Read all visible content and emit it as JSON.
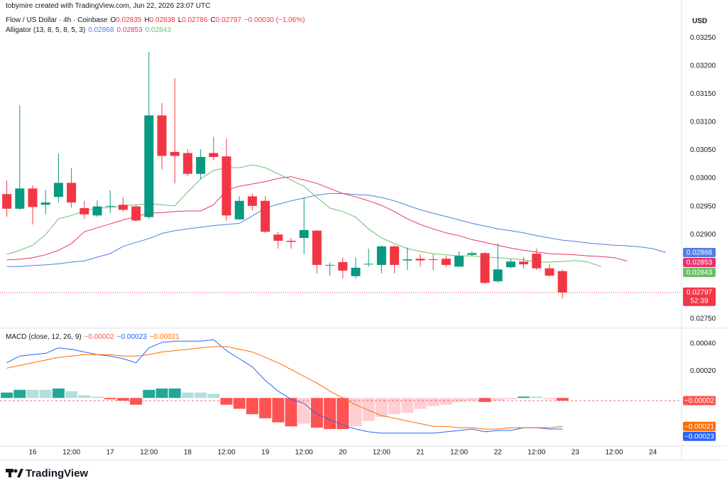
{
  "attribution": "tobymire created with TradingView.com, Jun 22, 2026 23:07 UTC",
  "brand": "TradingView",
  "chart_data": [
    {
      "type": "candlestick",
      "title": "Flow / US Dollar · 4h · Coinbase",
      "ohlc_labels": {
        "open": "O",
        "high": "H",
        "low": "L",
        "close": "C"
      },
      "change": "−0.00030 (−1.06%)",
      "countdown": "52:39",
      "axis_unit": "USD",
      "up_color": "#089981",
      "down_color": "#f23645",
      "grid": false,
      "categories": [
        null,
        null,
        "16",
        null,
        null,
        "12:00",
        null,
        null,
        "17",
        null,
        null,
        "12:00",
        null,
        null,
        "18",
        null,
        null,
        "12:00",
        null,
        null,
        "19",
        null,
        null,
        "12:00",
        null,
        null,
        "20",
        null,
        null,
        "12:00",
        null,
        null,
        "21",
        null,
        null,
        "12:00",
        null,
        null,
        "22",
        null,
        null,
        "12:00",
        null,
        null,
        "23",
        null,
        null,
        "12:00",
        null,
        null,
        "24",
        null
      ],
      "open": [
        0.02972,
        0.02946,
        0.02982,
        0.02953,
        0.02967,
        0.02992,
        0.02947,
        0.02934,
        0.0295,
        0.02953,
        0.0295,
        0.02931,
        0.03112,
        0.03047,
        0.03045,
        0.03008,
        0.03045,
        0.03039,
        0.02927,
        0.02968,
        0.0296,
        0.029,
        0.02889,
        0.02894,
        0.02907,
        0.02845,
        0.02851,
        0.02826,
        0.02847,
        0.02846,
        0.02879,
        0.02854,
        0.02857,
        0.02856,
        0.02857,
        0.02843,
        0.02864,
        0.02867,
        0.02817,
        0.02842,
        0.02852,
        0.02866,
        0.0284,
        0.02835,
        null,
        null,
        null,
        null,
        null,
        null,
        null,
        null
      ],
      "high": [
        0.02996,
        0.0313,
        0.02988,
        0.02979,
        0.03044,
        0.03018,
        0.0296,
        0.02961,
        0.02979,
        0.02966,
        0.02953,
        0.03225,
        0.03134,
        0.03178,
        0.03052,
        0.03052,
        0.03074,
        0.03071,
        0.02968,
        0.02973,
        0.02968,
        0.02905,
        0.02894,
        0.02966,
        0.02908,
        0.0285,
        0.02859,
        0.02859,
        0.02875,
        0.02881,
        0.02881,
        0.02877,
        0.02865,
        0.02865,
        0.02862,
        0.0287,
        0.0287,
        0.02869,
        0.02884,
        0.02857,
        0.0286,
        0.02875,
        0.02847,
        0.02838,
        null,
        null,
        null,
        null,
        null,
        null,
        null,
        null
      ],
      "low": [
        0.02932,
        0.02944,
        0.02918,
        0.02936,
        0.02957,
        0.02948,
        0.02928,
        0.02931,
        0.02938,
        0.02941,
        0.02923,
        0.02928,
        0.03016,
        0.02991,
        0.03004,
        0.02999,
        0.03032,
        0.02925,
        0.02926,
        0.02943,
        0.02903,
        0.02875,
        0.02875,
        0.02865,
        0.02831,
        0.02827,
        0.02822,
        0.02822,
        0.02843,
        0.02831,
        0.02831,
        0.02837,
        0.02843,
        0.02837,
        0.02842,
        0.02842,
        0.02862,
        0.02812,
        0.02814,
        0.0284,
        0.0284,
        0.02837,
        0.02825,
        0.02786,
        null,
        null,
        null,
        null,
        null,
        null,
        null,
        null
      ],
      "close": [
        0.02946,
        0.02982,
        0.02949,
        0.02957,
        0.02992,
        0.02957,
        0.02936,
        0.0295,
        0.02951,
        0.02944,
        0.02925,
        0.03112,
        0.0304,
        0.0304,
        0.03008,
        0.03038,
        0.03038,
        0.02934,
        0.0296,
        0.02951,
        0.02905,
        0.02889,
        0.02887,
        0.02908,
        0.02846,
        0.02846,
        0.02836,
        0.02841,
        0.02848,
        0.02879,
        0.02846,
        0.02856,
        0.02854,
        0.02855,
        0.02846,
        0.02862,
        0.02867,
        0.02814,
        0.02838,
        0.02852,
        0.02847,
        0.0284,
        0.02827,
        0.02797,
        null,
        null,
        null,
        null,
        null,
        null,
        null,
        null
      ],
      "overlay": {
        "name": "Alligator (13, 8, 5, 8, 5, 3)",
        "series": [
          {
            "color": "#4f7fe6",
            "values": [
              0.02843,
              0.02843,
              0.02845,
              0.02846,
              0.02848,
              0.02851,
              0.02853,
              0.0286,
              0.02866,
              0.02879,
              0.02886,
              0.02893,
              0.02902,
              0.02907,
              0.0291,
              0.02913,
              0.02916,
              0.02918,
              0.0292,
              0.02933,
              0.02947,
              0.02954,
              0.0296,
              0.02965,
              0.0297,
              0.02973,
              0.02973,
              0.02971,
              0.0297,
              0.02966,
              0.0296,
              0.02952,
              0.02944,
              0.02938,
              0.02932,
              0.02926,
              0.0292,
              0.02915,
              0.0291,
              0.02907,
              0.02903,
              0.02898,
              0.02894,
              0.0289,
              0.02888,
              0.02885,
              0.02883,
              0.02881,
              0.0288,
              0.02878,
              0.02875,
              0.02868
            ]
          },
          {
            "color": "#e8336d",
            "values": [
              0.02855,
              0.02856,
              0.02859,
              0.02864,
              0.02872,
              0.02884,
              0.02905,
              0.02912,
              0.02919,
              0.02926,
              0.02932,
              0.02938,
              0.02939,
              0.02941,
              0.02942,
              0.02942,
              0.02953,
              0.02979,
              0.02986,
              0.0299,
              0.02994,
              0.03,
              0.03003,
              0.02997,
              0.02991,
              0.02982,
              0.02973,
              0.02967,
              0.0296,
              0.02952,
              0.02941,
              0.02928,
              0.02918,
              0.0291,
              0.02903,
              0.02898,
              0.02891,
              0.02886,
              0.02881,
              0.02876,
              0.02872,
              0.02869,
              0.02866,
              0.02865,
              0.02864,
              0.02862,
              0.02861,
              0.02859,
              0.02853,
              null,
              null,
              null
            ]
          },
          {
            "color": "#6cbf6c",
            "values": [
              0.02865,
              0.02872,
              0.02881,
              0.029,
              0.02928,
              0.02934,
              0.02942,
              0.02947,
              0.02948,
              0.02951,
              0.02953,
              0.02955,
              0.02953,
              0.02951,
              0.02976,
              0.02999,
              0.03014,
              0.03019,
              0.03019,
              0.03024,
              0.03019,
              0.03008,
              0.02997,
              0.02986,
              0.02966,
              0.02947,
              0.02941,
              0.02931,
              0.0291,
              0.02894,
              0.02884,
              0.02875,
              0.0287,
              0.02866,
              0.02864,
              0.02862,
              0.02862,
              0.0286,
              0.02859,
              0.02857,
              0.02855,
              0.02851,
              0.02851,
              0.02852,
              0.02854,
              0.02851,
              0.02843,
              null,
              null,
              null,
              null,
              null
            ]
          }
        ]
      },
      "ylim": [
        0.02736,
        0.03292
      ],
      "yticks": [
        {
          "value": 0.0275,
          "label": "0.02750"
        },
        {
          "value": 0.028,
          "label": "0.02800"
        },
        {
          "value": 0.0285,
          "label": "0.02850"
        },
        {
          "value": 0.029,
          "label": "0.02900"
        },
        {
          "value": 0.0295,
          "label": "0.02950"
        },
        {
          "value": 0.03,
          "label": "0.03000"
        },
        {
          "value": 0.0305,
          "label": "0.03050"
        },
        {
          "value": 0.031,
          "label": "0.03100"
        },
        {
          "value": 0.0315,
          "label": "0.03150"
        },
        {
          "value": 0.032,
          "label": "0.03200"
        },
        {
          "value": 0.0325,
          "label": "0.03250"
        }
      ]
    },
    {
      "type": "macd",
      "title": "MACD (close, 12, 26, 9)",
      "grid": false,
      "histogram": {
        "last_label": "−0.00002",
        "values": [
          4e-05,
          6e-05,
          6e-05,
          6e-05,
          7e-05,
          5e-05,
          2e-05,
          1e-05,
          -1e-05,
          -2e-05,
          -5e-05,
          6e-05,
          7e-05,
          7e-05,
          4e-05,
          4e-05,
          3e-05,
          -5e-05,
          -8e-05,
          -0.00012,
          -0.00015,
          -0.00018,
          -0.00021,
          -0.00019,
          -0.00022,
          -0.00023,
          -0.00023,
          -0.00021,
          -0.00017,
          -0.00014,
          -0.00012,
          -0.00011,
          -8e-05,
          -6e-05,
          -5e-05,
          -3e-05,
          -2e-05,
          -3e-05,
          -2e-05,
          -1e-05,
          1e-05,
          1e-05,
          -1e-05,
          -2e-05
        ],
        "colors": [
          "#26a69a",
          "#26a69a",
          "#b2dfdb",
          "#b2dfdb",
          "#26a69a",
          "#b2dfdb",
          "#b2dfdb",
          "#b2dfdb",
          "#ff5252",
          "#ff5252",
          "#ff5252",
          "#26a69a",
          "#26a69a",
          "#26a69a",
          "#b2dfdb",
          "#b2dfdb",
          "#b2dfdb",
          "#ff5252",
          "#ff5252",
          "#ff5252",
          "#ff5252",
          "#ff5252",
          "#ff5252",
          "#ffcdd2",
          "#ff5252",
          "#ff5252",
          "#ff5252",
          "#ffcdd2",
          "#ffcdd2",
          "#ffcdd2",
          "#ffcdd2",
          "#ffcdd2",
          "#ffcdd2",
          "#ffcdd2",
          "#ffcdd2",
          "#ffcdd2",
          "#ffcdd2",
          "#ff5252",
          "#ffcdd2",
          "#ffcdd2",
          "#26a69a",
          "#b2dfdb",
          "#ffcdd2",
          "#ff5252"
        ]
      },
      "series": [
        {
          "color": "#2962ff",
          "last_label": "−0.00023",
          "values": [
            0.00026,
            0.00031,
            0.00032,
            0.00033,
            0.00037,
            0.00036,
            0.00034,
            0.00032,
            0.00031,
            0.00029,
            0.00026,
            0.00037,
            0.00041,
            0.00042,
            0.00042,
            0.00042,
            0.00043,
            0.00035,
            0.00029,
            0.00023,
            0.00013,
            5e-05,
            -1e-05,
            -4e-05,
            -0.00012,
            -0.00016,
            -0.0002,
            -0.00023,
            -0.00025,
            -0.00026,
            -0.00026,
            -0.00026,
            -0.00026,
            -0.00026,
            -0.00025,
            -0.00024,
            -0.00023,
            -0.00025,
            -0.00024,
            -0.00024,
            -0.00022,
            -0.00022,
            -0.00023,
            -0.00023
          ]
        },
        {
          "color": "#ff6d00",
          "last_label": "−0.00021",
          "values": [
            0.00022,
            0.00024,
            0.00026,
            0.00028,
            0.0003,
            0.00031,
            0.00032,
            0.00032,
            0.00032,
            0.00031,
            0.00031,
            0.00032,
            0.00034,
            0.00035,
            0.00036,
            0.00037,
            0.00038,
            0.00038,
            0.00036,
            0.00034,
            0.0003,
            0.00026,
            0.00021,
            0.00016,
            0.00011,
            5e-05,
            0,
            -5e-05,
            -9e-05,
            -0.00013,
            -0.00015,
            -0.00017,
            -0.00019,
            -0.00021,
            -0.00021,
            -0.00022,
            -0.00022,
            -0.00023,
            -0.00023,
            -0.00022,
            -0.00022,
            -0.00022,
            -0.00022,
            -0.00021
          ]
        }
      ],
      "ylim": [
        -0.00034,
        0.0005
      ],
      "yticks": [
        {
          "value": 0.0002,
          "label": "0.00020"
        },
        {
          "value": 0.0004,
          "label": "0.00040"
        }
      ]
    }
  ]
}
